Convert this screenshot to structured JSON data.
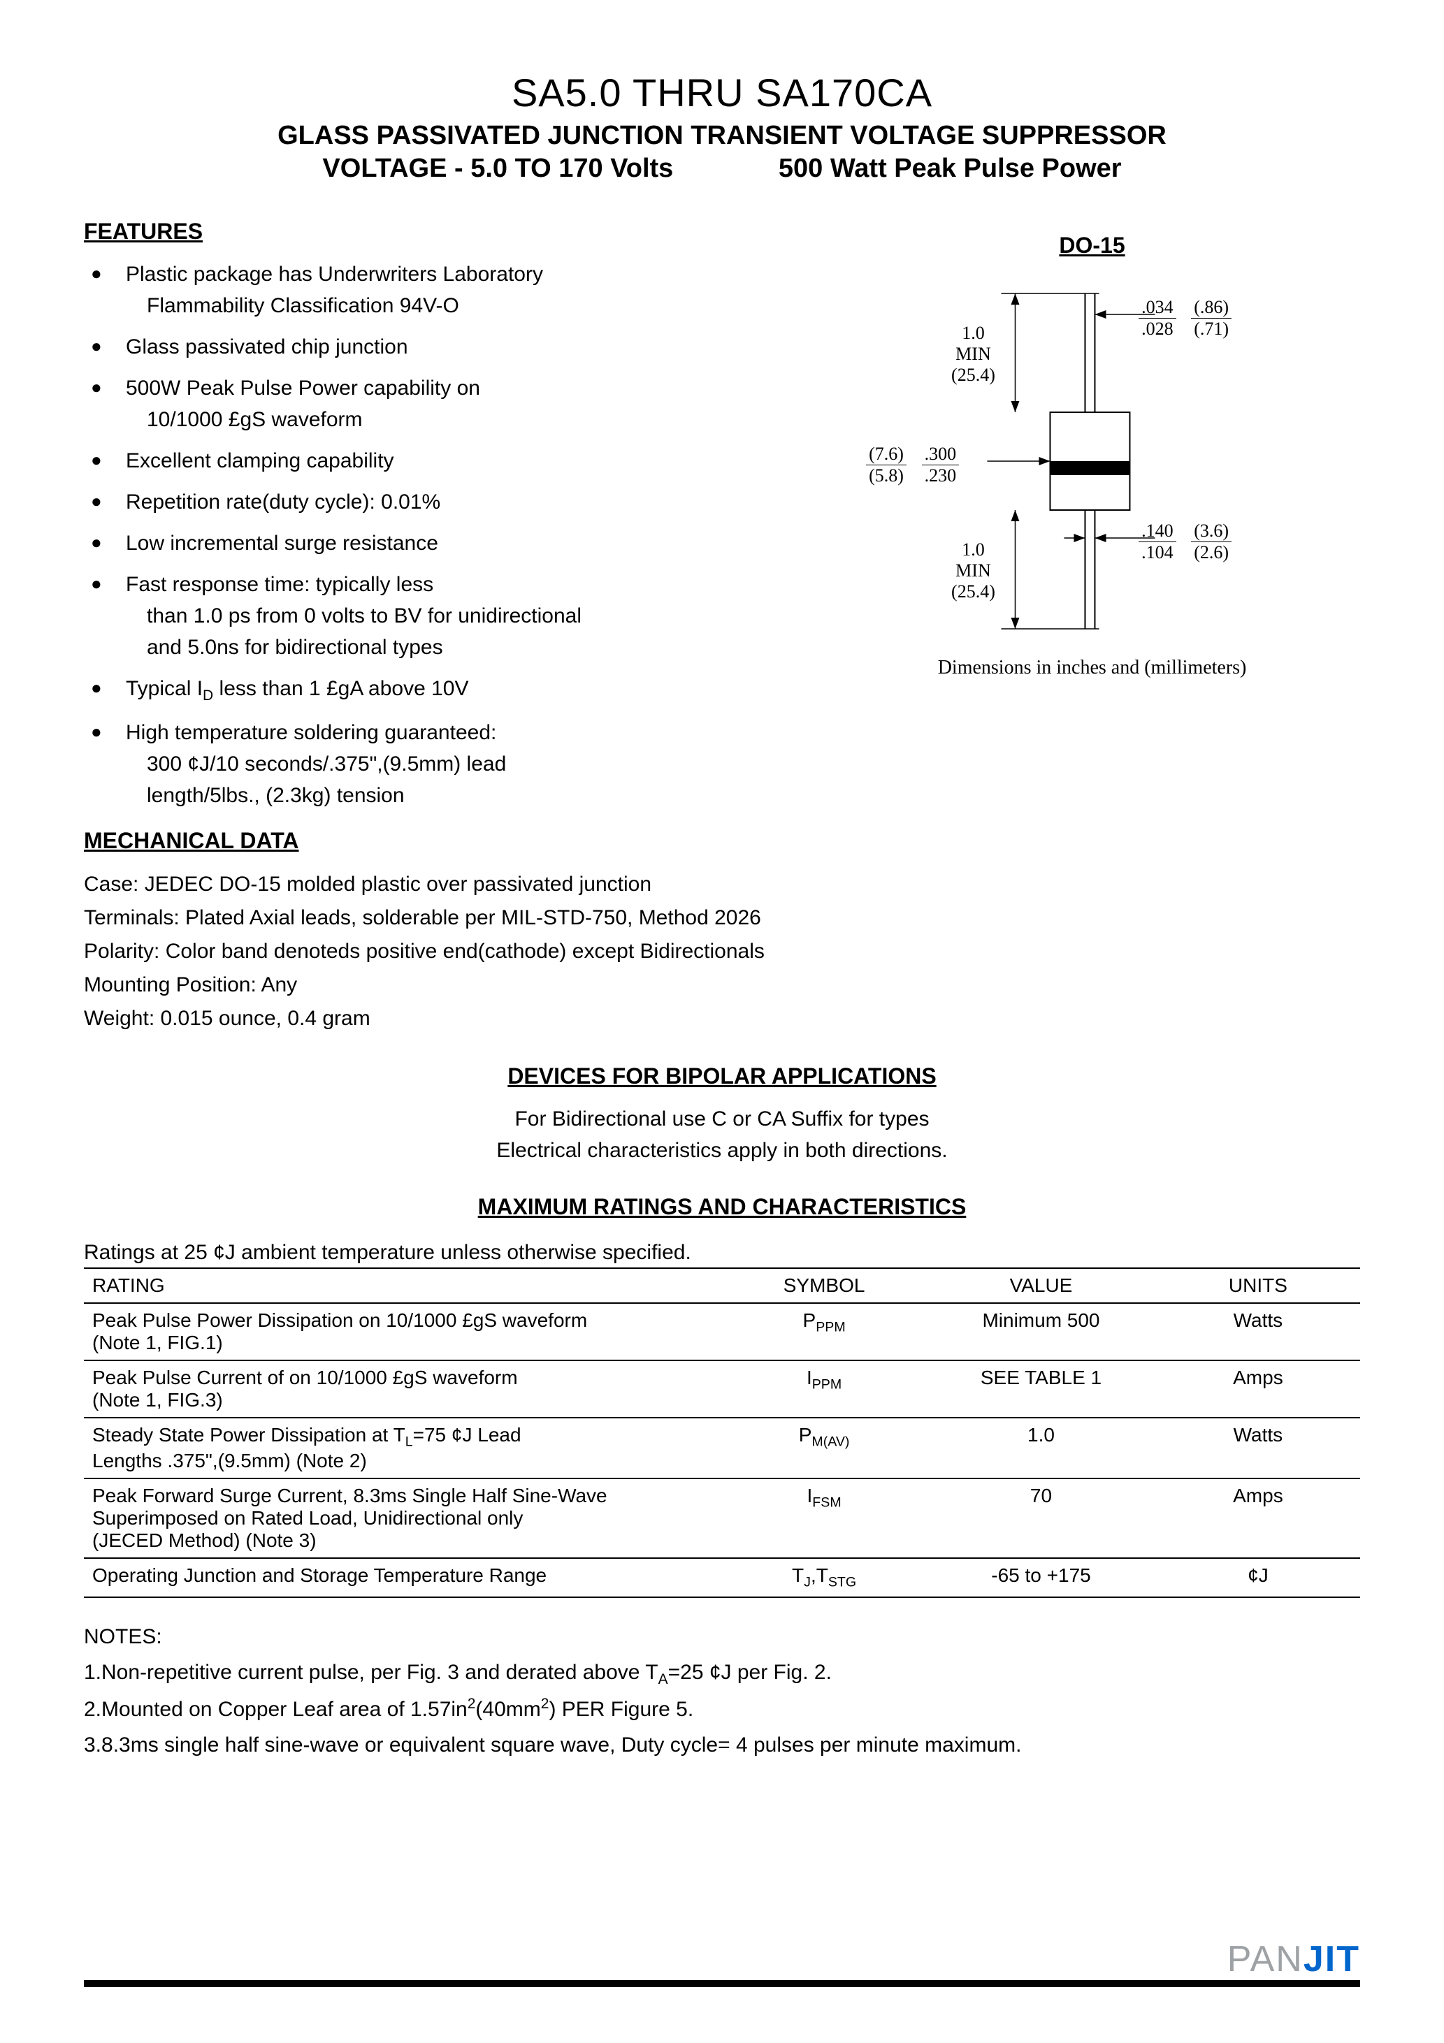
{
  "title": "SA5.0 THRU SA170CA",
  "subtitle1": "GLASS PASSIVATED JUNCTION TRANSIENT VOLTAGE SUPPRESSOR",
  "subtitle2_left": "VOLTAGE - 5.0 TO 170 Volts",
  "subtitle2_right": "500 Watt Peak Pulse Power",
  "features_header": "FEATURES",
  "features": [
    {
      "main": "Plastic package has Underwriters Laboratory",
      "cont": "Flammability Classification 94V-O"
    },
    {
      "main": "Glass passivated chip junction"
    },
    {
      "main": "500W Peak Pulse Power capability on",
      "cont": "10/1000 £gS   waveform"
    },
    {
      "main": "Excellent clamping capability"
    },
    {
      "main": "Repetition rate(duty cycle): 0.01%"
    },
    {
      "main": "Low incremental surge resistance"
    },
    {
      "main": "Fast response time: typically less",
      "cont": "than 1.0 ps from 0 volts to BV for unidirectional",
      "cont2": "and 5.0ns for bidirectional types"
    },
    {
      "main": "Typical I<sub>D</sub> less than 1 £gA above 10V"
    },
    {
      "main": "High temperature soldering guaranteed:",
      "cont": "300 ¢J/10 seconds/.375\",(9.5mm) lead",
      "cont2": "length/5lbs., (2.3kg) tension"
    }
  ],
  "package_label": "DO-15",
  "diagram": {
    "lead_min_label": "1.0\nMIN\n(25.4)",
    "dim_top": {
      "n1": ".034",
      "d1": ".028",
      "n2": "(.86)",
      "d2": "(.71)"
    },
    "dim_body_w": {
      "n1": "(7.6)",
      "d1": "(5.8)",
      "n2": ".300",
      "d2": ".230"
    },
    "dim_lead_w": {
      "n1": ".140",
      "d1": ".104",
      "n2": "(3.6)",
      "d2": "(2.6)"
    }
  },
  "dim_caption": "Dimensions in inches and (millimeters)",
  "mech_header": "MECHANICAL DATA",
  "mech": {
    "case": "Case: JEDEC DO-15 molded plastic over passivated junction",
    "terminals": "Terminals: Plated Axial leads, solderable per MIL-STD-750, Method 2026",
    "polarity": "Polarity: Color band denoteds positive end(cathode) except Bidirectionals",
    "mounting": "Mounting Position: Any",
    "weight": "Weight: 0.015 ounce, 0.4 gram"
  },
  "bipolar_header": "DEVICES FOR BIPOLAR APPLICATIONS",
  "bipolar_line1": "For Bidirectional use C or CA Suffix for types",
  "bipolar_line2": "Electrical characteristics apply in both directions.",
  "ratings_header": "MAXIMUM RATINGS AND CHARACTERISTICS",
  "ratings_note": "Ratings at 25 ¢J ambient temperature unless otherwise specified.",
  "table": {
    "headers": [
      "RATING",
      "SYMBOL",
      "VALUE",
      "UNITS"
    ],
    "rows": [
      {
        "rating": "Peak Pulse Power Dissipation on 10/1000 £gS waveform\n(Note 1, FIG.1)",
        "symbol": "P<sub>PPM</sub>",
        "value": "Minimum 500",
        "units": "Watts"
      },
      {
        "rating": "Peak Pulse Current of on 10/1000 £gS waveform\n(Note 1, FIG.3)",
        "symbol": "I<sub>PPM</sub>",
        "value": "SEE TABLE 1",
        "units": "Amps"
      },
      {
        "rating": "Steady State Power Dissipation at T<sub>L</sub>=75 ¢J Lead\nLengths .375\",(9.5mm) (Note 2)",
        "symbol": "P<sub>M(AV)</sub>",
        "value": "1.0",
        "units": "Watts"
      },
      {
        "rating": "Peak Forward Surge Current, 8.3ms Single Half Sine-Wave\nSuperimposed on Rated Load, Unidirectional only\n(JECED Method) (Note 3)",
        "symbol": "I<sub>FSM</sub>",
        "value": "70",
        "units": "Amps"
      },
      {
        "rating": "Operating Junction and Storage Temperature Range",
        "symbol": "T<sub>J</sub>,T<sub>STG</sub>",
        "value": "-65 to +175",
        "units": "¢J"
      }
    ]
  },
  "notes_header": "NOTES:",
  "notes": [
    "1.Non-repetitive current pulse, per Fig. 3 and derated above T<sub>A</sub>=25 ¢J per Fig. 2.",
    "2.Mounted on Copper Leaf area of 1.57in<sup>2</sup>(40mm<sup>2</sup>) PER Figure 5.",
    "3.8.3ms single half sine-wave or equivalent square wave, Duty cycle= 4 pulses per minute maximum."
  ],
  "logo": {
    "part1": "PAN",
    "part2": "JIT"
  }
}
